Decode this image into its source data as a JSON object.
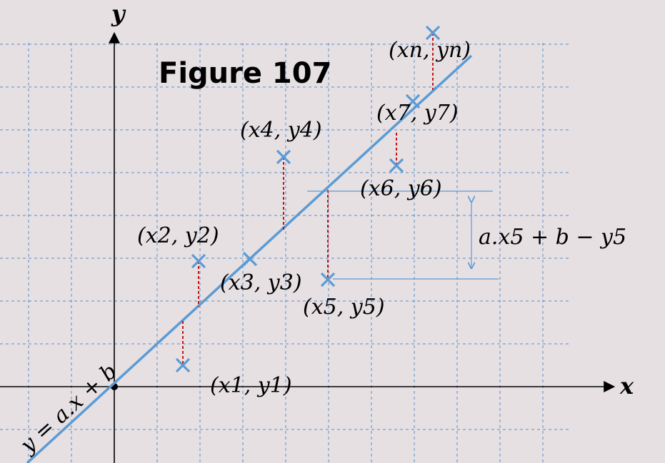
{
  "title": "Figure 107",
  "axes": {
    "x_label": "x",
    "y_label": "y"
  },
  "line_label": "y = a.x + b",
  "points": [
    {
      "name": "1",
      "label": "(x1, y1)"
    },
    {
      "name": "2",
      "label": "(x2, y2)"
    },
    {
      "name": "3",
      "label": "(x3, y3)"
    },
    {
      "name": "4",
      "label": "(x4, y4)"
    },
    {
      "name": "5",
      "label": "(x5, y5)"
    },
    {
      "name": "6",
      "label": "(x6, y6)"
    },
    {
      "name": "7",
      "label": "(x7, y7)"
    },
    {
      "name": "n",
      "label": "(xn, yn)"
    }
  ],
  "residual_label": "a.x5 + b − y5",
  "colors": {
    "line": "#5b9bd5",
    "residual": "#c00000",
    "grid": "#4a86c8",
    "background": "#e6e0e2"
  }
}
